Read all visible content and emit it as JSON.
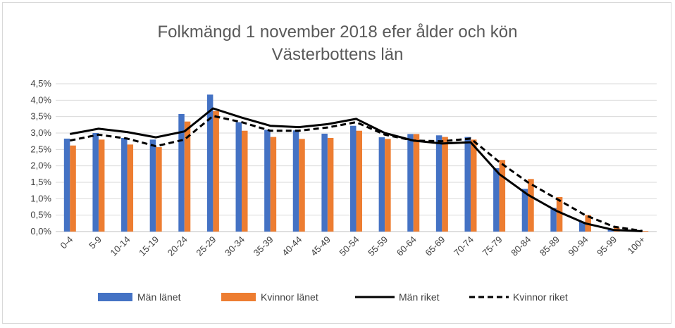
{
  "chart_data": {
    "type": "bar",
    "title": "Folkmängd 1 november 2018 efer ålder och kön",
    "subtitle": "Västerbottens län",
    "xlabel": "",
    "ylabel": "",
    "ylim": [
      0,
      4.5
    ],
    "yticks": [
      "0,0%",
      "0,5%",
      "1,0%",
      "1,5%",
      "2,0%",
      "2,5%",
      "3,0%",
      "3,5%",
      "4,0%",
      "4,5%"
    ],
    "grid": true,
    "legend_position": "bottom",
    "categories": [
      "0-4",
      "5-9",
      "10-14",
      "15-19",
      "20-24",
      "25-29",
      "30-34",
      "35-39",
      "40-44",
      "45-49",
      "50-54",
      "55-59",
      "60-64",
      "65-69",
      "70-74",
      "75-79",
      "80-84",
      "85-89",
      "90-94",
      "95-99",
      "100+"
    ],
    "series": [
      {
        "name": "Män länet",
        "type": "bar",
        "color": "#4472c4",
        "values": [
          2.83,
          3.0,
          2.85,
          2.8,
          3.58,
          4.17,
          3.33,
          3.1,
          3.08,
          2.98,
          3.22,
          2.87,
          2.97,
          2.93,
          2.88,
          1.93,
          1.3,
          0.72,
          0.3,
          0.06,
          0.01
        ]
      },
      {
        "name": "Kvinnor länet",
        "type": "bar",
        "color": "#ed7d31",
        "values": [
          2.62,
          2.8,
          2.65,
          2.57,
          3.35,
          3.67,
          3.07,
          2.88,
          2.82,
          2.85,
          3.07,
          2.82,
          2.97,
          2.88,
          2.8,
          2.18,
          1.6,
          1.05,
          0.5,
          0.12,
          0.02
        ]
      },
      {
        "name": "Män riket",
        "type": "line",
        "style": "solid",
        "color": "#000000",
        "values": [
          2.97,
          3.13,
          3.03,
          2.87,
          3.05,
          3.75,
          3.47,
          3.22,
          3.18,
          3.27,
          3.43,
          3.0,
          2.77,
          2.68,
          2.72,
          1.75,
          1.12,
          0.63,
          0.25,
          0.05,
          0.01
        ]
      },
      {
        "name": "Kvinnor riket",
        "type": "line",
        "style": "dashed",
        "color": "#000000",
        "values": [
          2.77,
          2.95,
          2.83,
          2.6,
          2.8,
          3.52,
          3.33,
          3.07,
          3.07,
          3.17,
          3.33,
          2.95,
          2.77,
          2.75,
          2.83,
          2.12,
          1.5,
          1.0,
          0.5,
          0.15,
          0.02
        ]
      }
    ]
  }
}
